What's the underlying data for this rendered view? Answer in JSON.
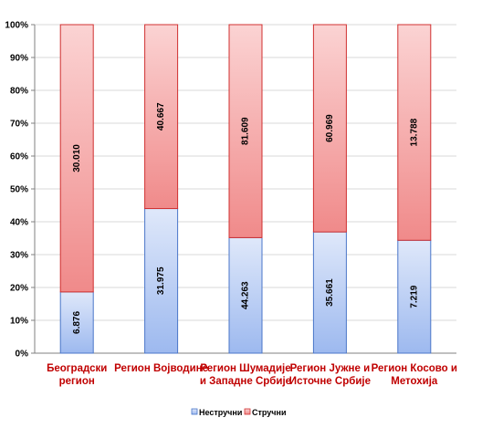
{
  "chart_data": {
    "type": "bar",
    "stacked": "percent",
    "categories": [
      [
        "Београдски",
        "регион"
      ],
      [
        "Регион Војводине"
      ],
      [
        "Регион Шумадије",
        "и Западне Србије"
      ],
      [
        "Регион Јужне и",
        "Источне Србије"
      ],
      [
        "Регион Косово и",
        "Метохија"
      ]
    ],
    "series": [
      {
        "name": "Нестручни",
        "values": [
          6876,
          31975,
          44263,
          35661,
          7219
        ],
        "labels": [
          "6.876",
          "31.975",
          "44.263",
          "35.661",
          "7.219"
        ]
      },
      {
        "name": "Стручни",
        "values": [
          30010,
          40667,
          81609,
          60969,
          13788
        ],
        "labels": [
          "30.010",
          "40.667",
          "81.609",
          "60.969",
          "13.788"
        ]
      }
    ],
    "yticks": [
      "0%",
      "10%",
      "20%",
      "30%",
      "40%",
      "50%",
      "60%",
      "70%",
      "80%",
      "90%",
      "100%"
    ],
    "ylim": [
      0,
      100
    ],
    "grid": true,
    "legend_position": "bottom",
    "colors": {
      "nestrucni_fill_top": "#dfe8fa",
      "nestrucni_fill_bottom": "#9db9ef",
      "nestrucni_edge": "#4a76c9",
      "strucni_fill_top": "#fbd3d3",
      "strucni_fill_bottom": "#f08a8a",
      "strucni_edge": "#d03030",
      "category_text": "#c00000"
    }
  }
}
